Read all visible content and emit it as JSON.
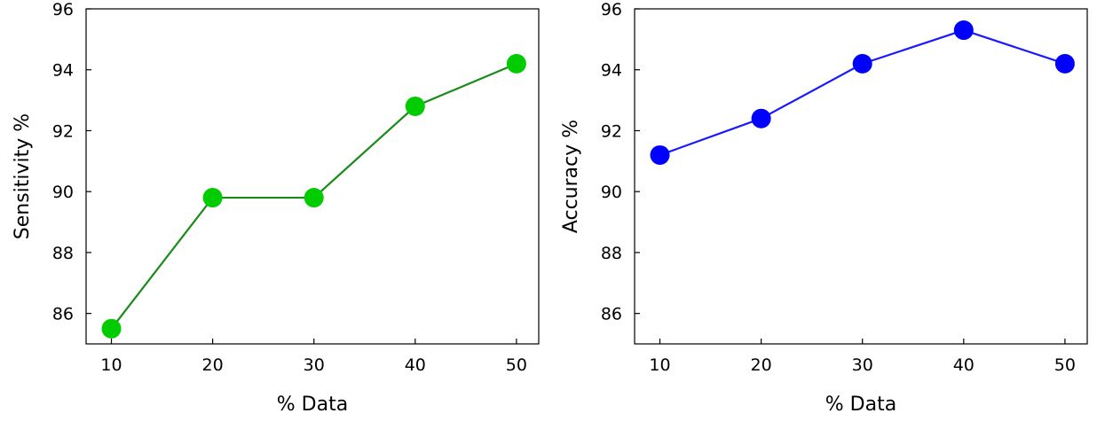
{
  "chart_data": [
    {
      "type": "line",
      "xlabel": "% Data",
      "ylabel": "Sensitivity %",
      "x": [
        10,
        20,
        30,
        40,
        50
      ],
      "series": [
        {
          "values": [
            85.5,
            89.8,
            89.8,
            92.8,
            94.2
          ],
          "line_color": "#1a8a1a",
          "marker_color": "#00cc00"
        }
      ],
      "xticks": [
        "10",
        "20",
        "30",
        "40",
        "50"
      ],
      "yticks": [
        "86",
        "88",
        "90",
        "92",
        "94",
        "96"
      ],
      "xlim": [
        7.5,
        52.2
      ],
      "ylim": [
        85,
        96
      ],
      "grid": false
    },
    {
      "type": "line",
      "xlabel": "% Data",
      "ylabel": "Accuracy %",
      "x": [
        10,
        20,
        30,
        40,
        50
      ],
      "series": [
        {
          "values": [
            91.2,
            92.4,
            94.2,
            95.3,
            94.2
          ],
          "line_color": "#1a1aff",
          "marker_color": "#0000ff"
        }
      ],
      "xticks": [
        "10",
        "20",
        "30",
        "40",
        "50"
      ],
      "yticks": [
        "86",
        "88",
        "90",
        "92",
        "94",
        "96"
      ],
      "xlim": [
        7.5,
        52.2
      ],
      "ylim": [
        85,
        96
      ],
      "grid": false
    }
  ]
}
